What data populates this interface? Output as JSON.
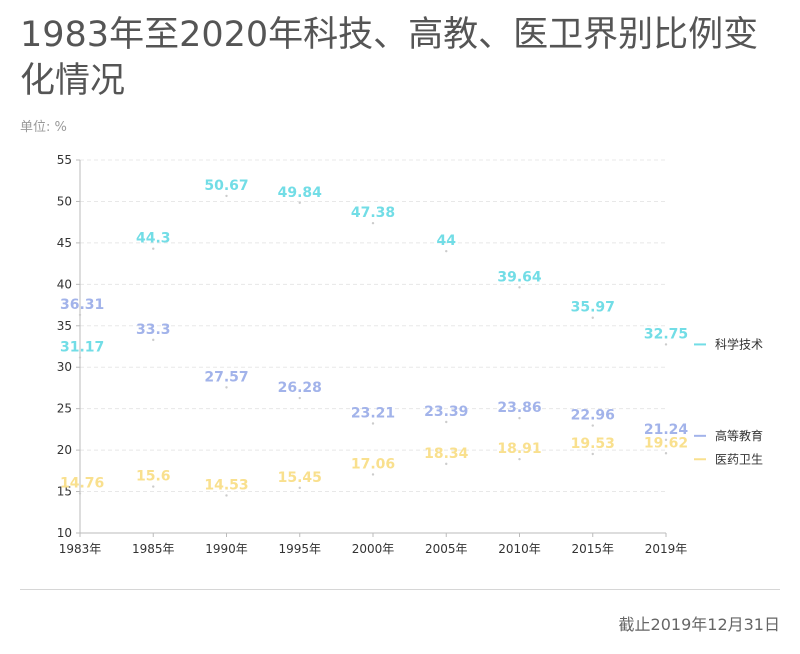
{
  "header": {
    "title": "1983年至2020年科技、高教、医卫界别比例变化情况",
    "unit": "单位: %"
  },
  "footer": {
    "note": "截止2019年12月31日"
  },
  "colors": {
    "science": "#72dde6",
    "higher_edu": "#a2b3ea",
    "health": "#f9e08e",
    "grid": "#e8e8e8",
    "axis": "#bbbbbb"
  },
  "chart_data": {
    "type": "line",
    "title": "1983年至2020年科技、高教、医卫界别比例变化情况",
    "ylabel": "单位: %",
    "categories": [
      "1983年",
      "1985年",
      "1990年",
      "1995年",
      "2000年",
      "2005年",
      "2010年",
      "2015年",
      "2019年"
    ],
    "ylim": [
      10,
      55
    ],
    "yticks": [
      10,
      15,
      20,
      25,
      30,
      35,
      40,
      45,
      50,
      55
    ],
    "grid": true,
    "legend_position": "right",
    "series": [
      {
        "name": "科学技术",
        "color_key": "science",
        "values": [
          31.17,
          44.3,
          50.67,
          49.84,
          47.38,
          44,
          39.64,
          35.97,
          32.75
        ],
        "labels": [
          "31.17",
          "44.3",
          "50.67",
          "49.84",
          "47.38",
          "44",
          "39.64",
          "35.97",
          "32.75"
        ]
      },
      {
        "name": "高等教育",
        "color_key": "higher_edu",
        "values": [
          36.31,
          33.3,
          27.57,
          26.28,
          23.21,
          23.39,
          23.86,
          22.96,
          21.24
        ],
        "labels": [
          "36.31",
          "33.3",
          "27.57",
          "26.28",
          "23.21",
          "23.39",
          "23.86",
          "22.96",
          "21.24"
        ]
      },
      {
        "name": "医药卫生",
        "color_key": "health",
        "values": [
          14.76,
          15.6,
          14.53,
          15.45,
          17.06,
          18.34,
          18.91,
          19.53,
          19.62
        ],
        "labels": [
          "14.76",
          "15.6",
          "14.53",
          "15.45",
          "17.06",
          "18.34",
          "18.91",
          "19.53",
          "19.62"
        ]
      }
    ]
  }
}
